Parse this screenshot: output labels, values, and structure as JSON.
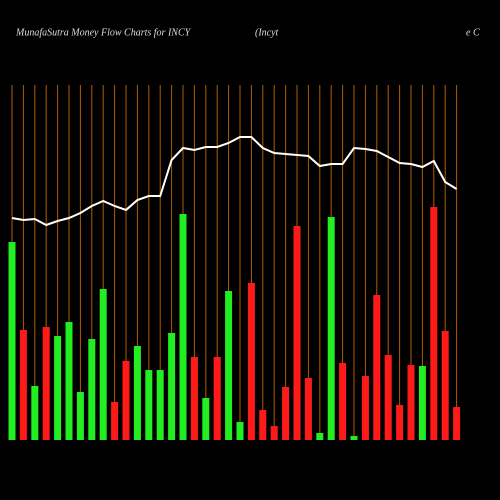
{
  "chart_data": {
    "type": "bar",
    "title": "MunafaSutra  Money Flow  Charts for INCY",
    "subtitle": [
      "(Incyt",
      "e  C"
    ],
    "categories": [
      null,
      null,
      null,
      null,
      null,
      null,
      null,
      null,
      null,
      null,
      null,
      null,
      null,
      null,
      null,
      null,
      null,
      null,
      null,
      null,
      null,
      null,
      null,
      null,
      null,
      null,
      null,
      null,
      null,
      null,
      null,
      null,
      null,
      null,
      null,
      null,
      null,
      null,
      null,
      null
    ],
    "ylim": [
      0,
      355
    ],
    "y2lim": [
      0,
      355
    ],
    "grid": true,
    "grid_color": "#b35c00",
    "series": [
      {
        "values": [
          198,
          110,
          54,
          113,
          104,
          118,
          48,
          101,
          151,
          38,
          79,
          94,
          70,
          70,
          107,
          226,
          83,
          42,
          83,
          149,
          18,
          157,
          30,
          14,
          53,
          214,
          62,
          7,
          223,
          77,
          4,
          64,
          145,
          85,
          35,
          75,
          74,
          233,
          109,
          33
        ],
        "colors": [
          "#22ee22",
          "#ff1a1a",
          "#22ee22",
          "#ff1a1a",
          "#22ee22",
          "#22ee22",
          "#22ee22",
          "#22ee22",
          "#22ee22",
          "#ff1a1a",
          "#ff1a1a",
          "#22ee22",
          "#22ee22",
          "#22ee22",
          "#22ee22",
          "#22ee22",
          "#ff1a1a",
          "#22ee22",
          "#ff1a1a",
          "#22ee22",
          "#22ee22",
          "#ff1a1a",
          "#ff1a1a",
          "#ff1a1a",
          "#ff1a1a",
          "#ff1a1a",
          "#ff1a1a",
          "#22ee22",
          "#22ee22",
          "#ff1a1a",
          "#22ee22",
          "#ff1a1a",
          "#ff1a1a",
          "#ff1a1a",
          "#ff1a1a",
          "#ff1a1a",
          "#22ee22",
          "#ff1a1a",
          "#ff1a1a",
          "#ff1a1a"
        ]
      },
      {
        "type": "line",
        "axis": "y2",
        "color": "#ffffff",
        "values": [
          222,
          220,
          221,
          215,
          219,
          222,
          227,
          234,
          239,
          234,
          230,
          240,
          244,
          244,
          280,
          292,
          290,
          293,
          293,
          297,
          303,
          303,
          292,
          287,
          286,
          285,
          284,
          274,
          276,
          276,
          292,
          291,
          289,
          283,
          277,
          276,
          273,
          279,
          258,
          251
        ]
      }
    ]
  }
}
